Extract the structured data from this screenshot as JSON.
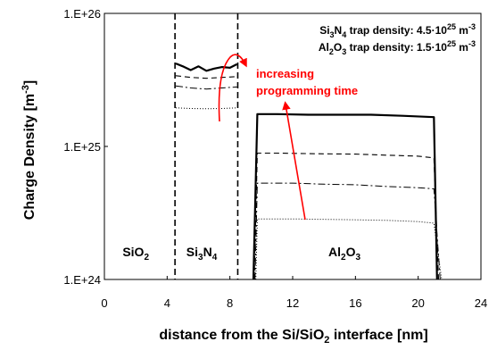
{
  "chart_data": {
    "type": "line",
    "xlabel": {
      "pre": "distance from the Si/SiO",
      "sub": "2",
      "post": " interface [nm]"
    },
    "ylabel": {
      "pre": "Charge Density [m",
      "sup": "-3",
      "post": "]"
    },
    "xlim": [
      0,
      24
    ],
    "ylim": [
      1e+24,
      1e+26
    ],
    "y_scale": "log",
    "x_ticks": [
      "0",
      "4",
      "8",
      "12",
      "16",
      "20",
      "24"
    ],
    "x_tick_values": [
      0,
      4,
      8,
      12,
      16,
      20,
      24
    ],
    "y_ticks": [
      "1.E+24",
      "1.E+25",
      "1.E+26"
    ],
    "y_tick_values": [
      1e+24,
      1e+25,
      1e+26
    ],
    "interfaces_nm": [
      4.5,
      8.5
    ],
    "regions": [
      {
        "id": "sio2",
        "base": "SiO",
        "sub": "2",
        "mid": "",
        "sub2": "",
        "x": 2.0
      },
      {
        "id": "si3n4",
        "base": "Si",
        "sub": "3",
        "mid": "N",
        "sub2": "4",
        "x": 6.2
      },
      {
        "id": "al2o3",
        "base": "Al",
        "sub": "2",
        "mid": "O",
        "sub2": "3",
        "x": 15.3
      }
    ],
    "annotation": {
      "line1": "increasing",
      "line2": "programming time",
      "color": "#ff0000"
    },
    "trap_density": [
      {
        "base": "Si",
        "sub": "3",
        "mid": "N",
        "sub2": "4",
        "label": " trap density: 4.5·10",
        "exp": "25",
        "unit": " m",
        "unit_exp": "-3"
      },
      {
        "base": "Al",
        "sub": "2",
        "mid": "O",
        "sub2": "3",
        "label": " trap density: 1.5·10",
        "exp": "25",
        "unit": " m",
        "unit_exp": "-3"
      }
    ],
    "series": [
      {
        "dash": "solid",
        "width": 2.2,
        "points": [
          [
            4.55,
            4.2e+25
          ],
          [
            5.0,
            4e+25
          ],
          [
            5.5,
            3.75e+25
          ],
          [
            6.0,
            4e+25
          ],
          [
            6.5,
            3.7e+25
          ],
          [
            7.0,
            3.85e+25
          ],
          [
            7.5,
            3.95e+25
          ],
          [
            8.0,
            3.9e+25
          ],
          [
            8.45,
            4.15e+25
          ],
          null,
          [
            9.5,
            1e+24
          ],
          [
            9.75,
            1.75e+25
          ],
          [
            11,
            1.75e+25
          ],
          [
            13,
            1.73e+25
          ],
          [
            15,
            1.73e+25
          ],
          [
            17,
            1.73e+25
          ],
          [
            19,
            1.7e+25
          ],
          [
            21,
            1.66e+25
          ],
          [
            21.2,
            1e+24
          ]
        ]
      },
      {
        "dash": "6,4",
        "width": 1.1,
        "points": [
          [
            4.55,
            3.4e+25
          ],
          [
            5.5,
            3.3e+25
          ],
          [
            6.5,
            3.25e+25
          ],
          [
            7.5,
            3.3e+25
          ],
          [
            8.45,
            3.35e+25
          ],
          null,
          [
            9.55,
            1e+24
          ],
          [
            9.75,
            8.9e+24
          ],
          [
            11,
            8.9e+24
          ],
          [
            14,
            8.8e+24
          ],
          [
            16,
            8.75e+24
          ],
          [
            18,
            8.6e+24
          ],
          [
            20,
            8.45e+24
          ],
          [
            21,
            8.2e+24
          ],
          [
            21.3,
            1e+24
          ]
        ]
      },
      {
        "dash": "8,3,2,3",
        "width": 1.0,
        "points": [
          [
            4.55,
            2.85e+25
          ],
          [
            5.5,
            2.75e+25
          ],
          [
            6.5,
            2.7e+25
          ],
          [
            7.5,
            2.75e+25
          ],
          [
            8.45,
            2.8e+25
          ],
          null,
          [
            9.6,
            1e+24
          ],
          [
            9.75,
            5.3e+24
          ],
          [
            12,
            5.3e+24
          ],
          [
            14,
            5.2e+24
          ],
          [
            16,
            5.15e+24
          ],
          [
            18,
            5e+24
          ],
          [
            20,
            4.9e+24
          ],
          [
            21,
            4.8e+24
          ],
          [
            21.4,
            1e+24
          ]
        ]
      },
      {
        "dash": "1,2",
        "width": 1.0,
        "points": [
          [
            4.55,
            1.95e+25
          ],
          [
            5.5,
            1.93e+25
          ],
          [
            6.5,
            1.92e+25
          ],
          [
            7.5,
            1.93e+25
          ],
          [
            8.45,
            1.95e+25
          ],
          null,
          [
            9.65,
            1e+24
          ],
          [
            9.75,
            2.85e+24
          ],
          [
            12,
            2.85e+24
          ],
          [
            15,
            2.82e+24
          ],
          [
            18,
            2.78e+24
          ],
          [
            20,
            2.72e+24
          ],
          [
            21,
            2.65e+24
          ],
          [
            21.5,
            1e+24
          ]
        ]
      }
    ]
  }
}
